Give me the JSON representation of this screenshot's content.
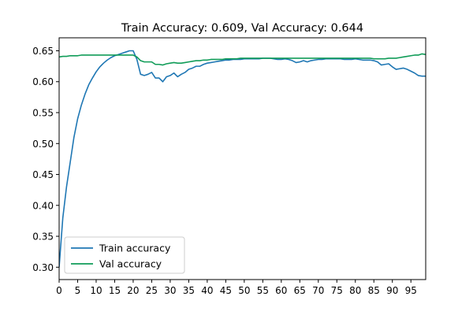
{
  "chart_data": {
    "type": "line",
    "title": "Train Accuracy: 0.609, Val Accuracy: 0.644",
    "xlabel": "",
    "ylabel": "",
    "xlim": [
      0,
      99
    ],
    "ylim": [
      0.28,
      0.671
    ],
    "x_ticks": [
      0,
      5,
      10,
      15,
      20,
      25,
      30,
      35,
      40,
      45,
      50,
      55,
      60,
      65,
      70,
      75,
      80,
      85,
      90,
      95
    ],
    "y_ticks": [
      0.3,
      0.35,
      0.4,
      0.45,
      0.5,
      0.55,
      0.6,
      0.65
    ],
    "legend_position": "lower-left",
    "grid": false,
    "series": [
      {
        "name": "Train accuracy",
        "color": "#1f77b4",
        "x": [
          0,
          1,
          2,
          3,
          4,
          5,
          6,
          7,
          8,
          9,
          10,
          11,
          12,
          13,
          14,
          15,
          16,
          17,
          18,
          19,
          20,
          21,
          22,
          23,
          24,
          25,
          26,
          27,
          28,
          29,
          30,
          31,
          32,
          33,
          34,
          35,
          36,
          37,
          38,
          39,
          40,
          41,
          42,
          43,
          44,
          45,
          46,
          47,
          48,
          49,
          50,
          51,
          52,
          53,
          54,
          55,
          56,
          57,
          58,
          59,
          60,
          61,
          62,
          63,
          64,
          65,
          66,
          67,
          68,
          69,
          70,
          71,
          72,
          73,
          74,
          75,
          76,
          77,
          78,
          79,
          80,
          81,
          82,
          83,
          84,
          85,
          86,
          87,
          88,
          89,
          90,
          91,
          92,
          93,
          94,
          95,
          96,
          97,
          98,
          99
        ],
        "values": [
          0.3,
          0.38,
          0.43,
          0.47,
          0.51,
          0.54,
          0.562,
          0.58,
          0.595,
          0.606,
          0.616,
          0.624,
          0.63,
          0.635,
          0.639,
          0.642,
          0.644,
          0.646,
          0.648,
          0.65,
          0.65,
          0.636,
          0.612,
          0.61,
          0.612,
          0.615,
          0.606,
          0.606,
          0.6,
          0.608,
          0.61,
          0.614,
          0.608,
          0.612,
          0.615,
          0.62,
          0.622,
          0.625,
          0.625,
          0.628,
          0.63,
          0.631,
          0.632,
          0.633,
          0.634,
          0.635,
          0.635,
          0.636,
          0.636,
          0.636,
          0.637,
          0.637,
          0.637,
          0.637,
          0.637,
          0.638,
          0.638,
          0.638,
          0.637,
          0.636,
          0.636,
          0.637,
          0.636,
          0.634,
          0.631,
          0.632,
          0.634,
          0.632,
          0.634,
          0.635,
          0.636,
          0.636,
          0.637,
          0.637,
          0.637,
          0.637,
          0.637,
          0.636,
          0.636,
          0.636,
          0.637,
          0.636,
          0.635,
          0.635,
          0.635,
          0.634,
          0.632,
          0.627,
          0.628,
          0.629,
          0.624,
          0.62,
          0.621,
          0.622,
          0.62,
          0.617,
          0.614,
          0.61,
          0.609,
          0.609
        ]
      },
      {
        "name": "Val accuracy",
        "color": "#109c58",
        "x": [
          0,
          1,
          2,
          3,
          4,
          5,
          6,
          7,
          8,
          9,
          10,
          11,
          12,
          13,
          14,
          15,
          16,
          17,
          18,
          19,
          20,
          21,
          22,
          23,
          24,
          25,
          26,
          27,
          28,
          29,
          30,
          31,
          32,
          33,
          34,
          35,
          36,
          37,
          38,
          39,
          40,
          41,
          42,
          43,
          44,
          45,
          46,
          47,
          48,
          49,
          50,
          51,
          52,
          53,
          54,
          55,
          56,
          57,
          58,
          59,
          60,
          61,
          62,
          63,
          64,
          65,
          66,
          67,
          68,
          69,
          70,
          71,
          72,
          73,
          74,
          75,
          76,
          77,
          78,
          79,
          80,
          81,
          82,
          83,
          84,
          85,
          86,
          87,
          88,
          89,
          90,
          91,
          92,
          93,
          94,
          95,
          96,
          97,
          98,
          99
        ],
        "values": [
          0.64,
          0.641,
          0.641,
          0.642,
          0.642,
          0.642,
          0.643,
          0.643,
          0.643,
          0.643,
          0.643,
          0.643,
          0.643,
          0.643,
          0.643,
          0.643,
          0.643,
          0.643,
          0.643,
          0.643,
          0.643,
          0.64,
          0.634,
          0.632,
          0.632,
          0.632,
          0.628,
          0.628,
          0.627,
          0.629,
          0.63,
          0.631,
          0.63,
          0.63,
          0.631,
          0.632,
          0.633,
          0.634,
          0.634,
          0.635,
          0.635,
          0.636,
          0.636,
          0.636,
          0.636,
          0.637,
          0.637,
          0.637,
          0.637,
          0.638,
          0.638,
          0.638,
          0.638,
          0.638,
          0.638,
          0.638,
          0.638,
          0.638,
          0.638,
          0.638,
          0.638,
          0.638,
          0.638,
          0.638,
          0.638,
          0.638,
          0.638,
          0.638,
          0.638,
          0.638,
          0.638,
          0.638,
          0.638,
          0.638,
          0.638,
          0.638,
          0.638,
          0.638,
          0.638,
          0.638,
          0.638,
          0.638,
          0.638,
          0.638,
          0.638,
          0.637,
          0.637,
          0.637,
          0.637,
          0.638,
          0.638,
          0.638,
          0.639,
          0.64,
          0.641,
          0.642,
          0.643,
          0.643,
          0.645,
          0.644
        ]
      }
    ]
  }
}
